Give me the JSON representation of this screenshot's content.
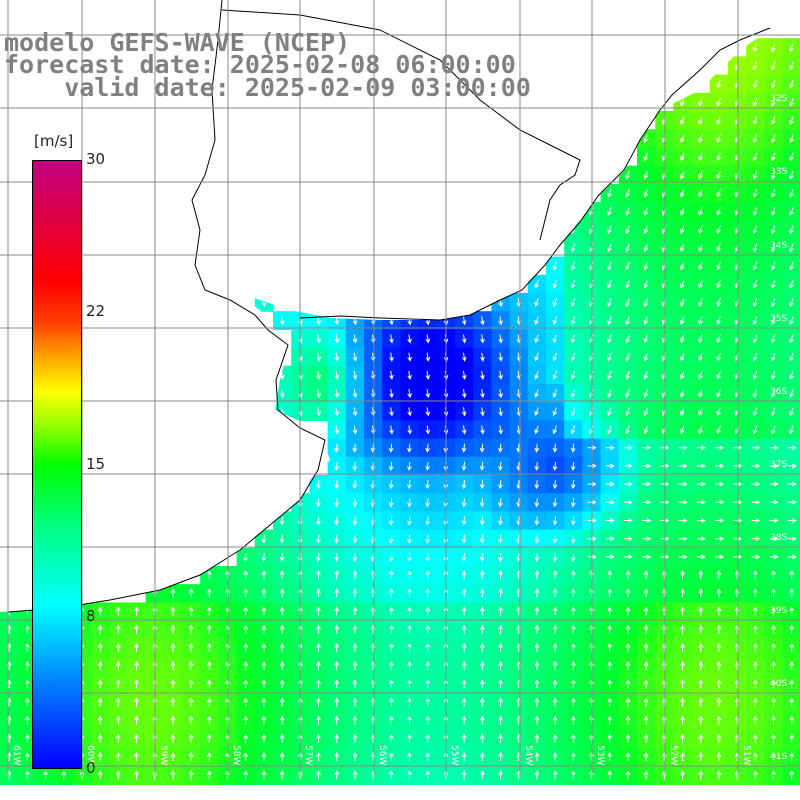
{
  "header": {
    "line1": "modelo GEFS-WAVE (NCEP)",
    "line2": "forecast date: 2025-02-08 06:00:00",
    "line3": "    valid date: 2025-02-09 03:00:00"
  },
  "colorbar": {
    "unit": "[m/s]",
    "ticks": [
      "30",
      "22",
      "15",
      "8",
      "0"
    ],
    "min": 0,
    "max": 30,
    "colors": {
      "low": "#0000ff",
      "mid_low": "#00ffff",
      "mid": "#00ff00",
      "mid_high": "#ffff00",
      "high": "#ff0000",
      "top": "#c0007f"
    }
  },
  "axes": {
    "lon_labels": [
      "61W",
      "60W",
      "59W",
      "58W",
      "57W",
      "56W",
      "55W",
      "54W",
      "53W",
      "52W",
      "51W"
    ],
    "lat_labels": [
      "32S",
      "33S",
      "34S",
      "35S",
      "36S",
      "37S",
      "38S",
      "39S",
      "40S",
      "41S"
    ]
  },
  "map": {
    "variable": "wind speed and direction",
    "land_color": "#ffffff",
    "coastline_color": "#000000",
    "grid_color": "#808080"
  }
}
